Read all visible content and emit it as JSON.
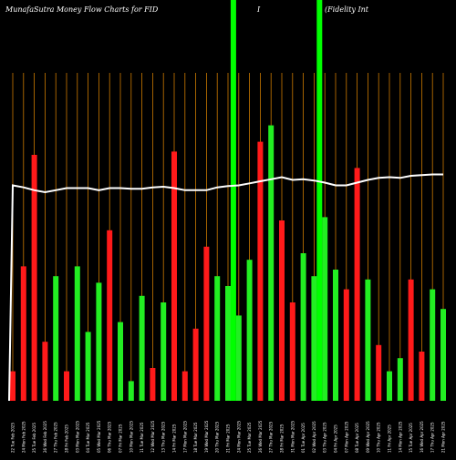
{
  "header": {
    "title_left": "MunafaSutra  Money Flow  Charts for FID",
    "title_mid": "I",
    "title_right": "(Fidelity Int"
  },
  "colors": {
    "background": "#000000",
    "grid": "#cc7a00",
    "up": "#22ee22",
    "down": "#ff1a1a",
    "line": "#ffffff",
    "spike": "#00ff00"
  },
  "chart_data": {
    "type": "bar",
    "title": "MunafaSutra  Money Flow  Charts for FID I (Fidelity Int",
    "grid": true,
    "ylim": [
      0,
      100
    ],
    "categories": [
      "22 Tue Feb 2025",
      "24 Mon Feb 2025",
      "25 Tue Feb 2025",
      "26 Wed Feb 2025",
      "27 Thu Feb 2025",
      "28 Fri Feb 2025",
      "03 Mon Mar 2025",
      "04 Tue Mar 2025",
      "05 Wed Mar 2025",
      "06 Thu Mar 2025",
      "07 Fri Mar 2025",
      "10 Mon Mar 2025",
      "11 Tue Mar 2025",
      "12 Wed Mar 2025",
      "13 Thu Mar 2025",
      "14 Fri Mar 2025",
      "17 Mon Mar 2025",
      "18 Tue Mar 2025",
      "19 Wed Mar 2025",
      "20 Thu Mar 2025",
      "21 Fri Mar 2025",
      "24 Mon Mar 2025",
      "25 Tue Mar 2025",
      "26 Wed Mar 2025",
      "27 Thu Mar 2025",
      "28 Fri Mar 2025",
      "31 Mon Mar 2025",
      "01 Tue Apr 2025",
      "02 Wed Apr 2025",
      "03 Thu Apr 2025",
      "04 Fri Apr 2025",
      "07 Mon Apr 2025",
      "08 Tue Apr 2025",
      "09 Wed Apr 2025",
      "10 Thu Apr 2025",
      "11 Fri Apr 2025",
      "14 Mon Apr 2025",
      "15 Tue Apr 2025",
      "16 Wed Apr 2025",
      "17 Thu Apr 2025",
      "21 Mon Apr 2025"
    ],
    "bar_values": [
      9,
      41,
      75,
      18,
      38,
      9,
      41,
      21,
      36,
      52,
      24,
      6,
      32,
      10,
      30,
      76,
      9,
      22,
      47,
      38,
      35,
      26,
      43,
      79,
      84,
      55,
      30,
      45,
      38,
      56,
      40,
      34,
      71,
      37,
      17,
      9,
      13,
      37,
      15,
      34,
      28
    ],
    "bar_directions": [
      "down",
      "down",
      "down",
      "down",
      "up",
      "down",
      "up",
      "up",
      "up",
      "down",
      "up",
      "up",
      "up",
      "down",
      "up",
      "down",
      "down",
      "down",
      "down",
      "up",
      "up",
      "up",
      "up",
      "down",
      "up",
      "down",
      "down",
      "up",
      "up",
      "up",
      "up",
      "down",
      "down",
      "up",
      "down",
      "up",
      "up",
      "down",
      "down",
      "up",
      "up"
    ],
    "line_values": [
      98.2,
      97.9,
      97.5,
      97.2,
      97.5,
      97.8,
      97.8,
      97.8,
      97.5,
      97.8,
      97.8,
      97.7,
      97.7,
      97.9,
      98.0,
      97.8,
      97.5,
      97.5,
      97.5,
      97.9,
      98.1,
      98.2,
      98.5,
      98.8,
      99.1,
      99.4,
      99.0,
      99.1,
      98.9,
      98.6,
      98.2,
      98.2,
      98.6,
      99.0,
      99.3,
      99.4,
      99.3,
      99.6,
      99.7,
      99.8,
      99.8
    ],
    "spikes": [
      {
        "after_index": 20,
        "color": "up"
      },
      {
        "after_index": 28,
        "color": "up"
      }
    ]
  }
}
